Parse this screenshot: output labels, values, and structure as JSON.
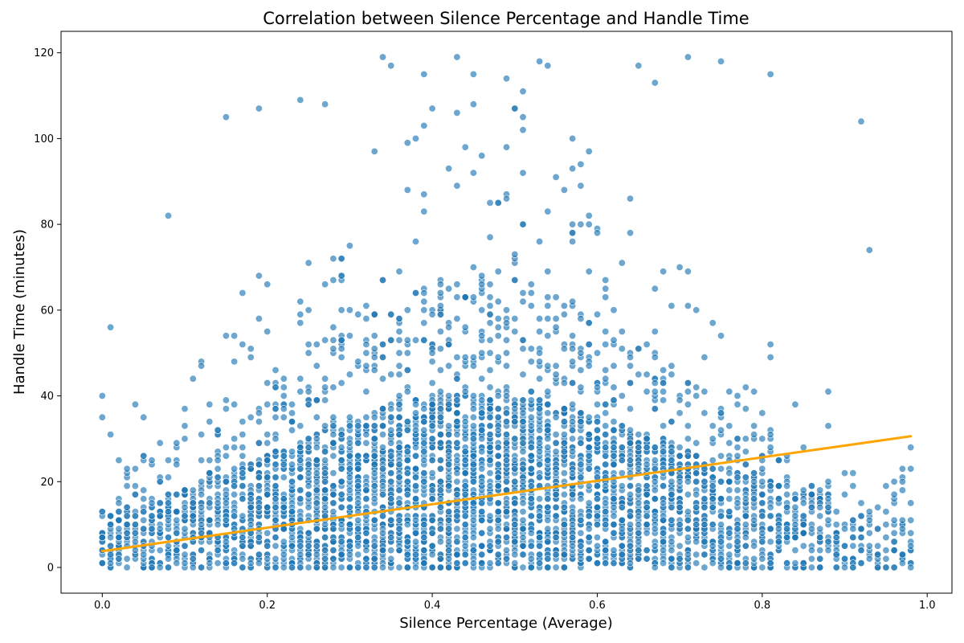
{
  "chart_data": {
    "type": "scatter",
    "title": "Correlation between Silence Percentage and Handle Time",
    "xlabel": "Silence Percentage (Average)",
    "ylabel": "Handle Time (minutes)",
    "xlim": [
      -0.05,
      1.03
    ],
    "ylim": [
      -6,
      125
    ],
    "x_ticks": [
      0.0,
      0.2,
      0.4,
      0.6,
      0.8,
      1.0
    ],
    "x_tick_labels": [
      "0.0",
      "0.2",
      "0.4",
      "0.6",
      "0.8",
      "1.0"
    ],
    "y_ticks": [
      0,
      20,
      40,
      60,
      80,
      100,
      120
    ],
    "y_tick_labels": [
      "0",
      "20",
      "40",
      "60",
      "80",
      "100",
      "120"
    ],
    "grid": false,
    "legend": "none",
    "colors": {
      "points": "#1f77b4",
      "trend": "#ffa500"
    },
    "scatter_series": {
      "x_range": [
        0.0,
        0.98
      ],
      "x_step": 0.01,
      "y_range": [
        0,
        119
      ],
      "y_step": 1,
      "approx_points": 12000,
      "density_peak_x": 0.45
    },
    "highlighted_points": [
      {
        "x": 0.0,
        "y": 40
      },
      {
        "x": 0.01,
        "y": 56
      },
      {
        "x": 0.08,
        "y": 82
      },
      {
        "x": 0.15,
        "y": 105
      },
      {
        "x": 0.19,
        "y": 107
      },
      {
        "x": 0.24,
        "y": 109
      },
      {
        "x": 0.27,
        "y": 108
      },
      {
        "x": 0.34,
        "y": 119
      },
      {
        "x": 0.35,
        "y": 117
      },
      {
        "x": 0.43,
        "y": 119
      },
      {
        "x": 0.49,
        "y": 114
      },
      {
        "x": 0.53,
        "y": 118
      },
      {
        "x": 0.54,
        "y": 117
      },
      {
        "x": 0.71,
        "y": 119
      },
      {
        "x": 0.75,
        "y": 118
      },
      {
        "x": 0.81,
        "y": 115
      },
      {
        "x": 0.92,
        "y": 104
      },
      {
        "x": 0.93,
        "y": 74
      },
      {
        "x": 0.98,
        "y": 28
      },
      {
        "x": 0.98,
        "y": 8
      },
      {
        "x": 0.94,
        "y": 0
      },
      {
        "x": 0.96,
        "y": 17
      },
      {
        "x": 0.97,
        "y": 3
      },
      {
        "x": 0.76,
        "y": 0
      },
      {
        "x": 0.89,
        "y": 0
      },
      {
        "x": 0.65,
        "y": 117
      },
      {
        "x": 0.67,
        "y": 113
      },
      {
        "x": 0.39,
        "y": 115
      },
      {
        "x": 0.45,
        "y": 115
      },
      {
        "x": 0.51,
        "y": 111
      }
    ],
    "trendline": {
      "x": [
        0.0,
        0.98
      ],
      "y": [
        3.8,
        30.6
      ]
    }
  }
}
